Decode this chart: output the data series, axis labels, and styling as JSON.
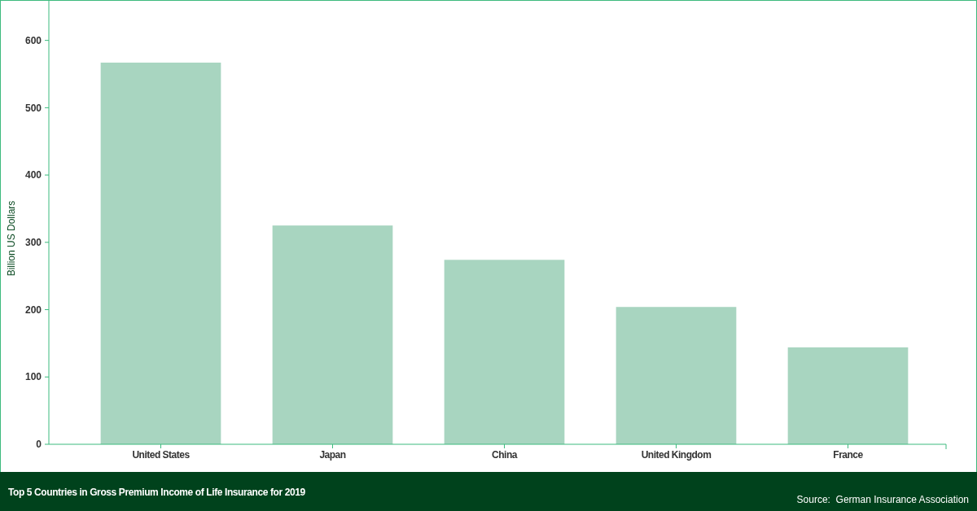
{
  "chart_data": {
    "type": "bar",
    "title": "Top 5 Countries in Gross Premium Income of Life Insurance for 2019",
    "ylabel": "Billion US Dollars",
    "categories": [
      "United States",
      "Japan",
      "China",
      "United Kingdom",
      "France"
    ],
    "values": [
      567,
      325,
      274,
      204,
      144
    ],
    "color": "#a8d5c0",
    "ylim": [
      0,
      660
    ],
    "yticks": [
      0,
      100,
      200,
      300,
      400,
      500,
      600
    ],
    "grid": false,
    "annotations": [
      "Source:  German Insurance Association"
    ]
  }
}
